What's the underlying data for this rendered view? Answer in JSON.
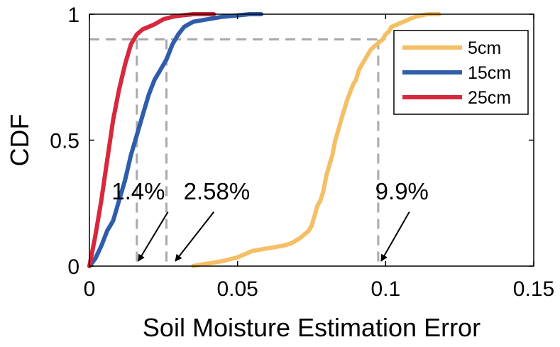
{
  "chart_data": {
    "type": "line",
    "title": "",
    "xlabel": "Soil Moisture Estimation Error",
    "ylabel": "CDF",
    "xlim": [
      0,
      0.15
    ],
    "ylim": [
      0,
      1
    ],
    "xticks": [
      0,
      0.05,
      0.1,
      0.15
    ],
    "xtick_labels": [
      "0",
      "0.05",
      "0.1",
      "0.15"
    ],
    "yticks": [
      0,
      0.5,
      1
    ],
    "ytick_labels": [
      "0",
      "0.5",
      "1"
    ],
    "grid": false,
    "legend_position": "top-right",
    "series": [
      {
        "name": "5cm",
        "color": "#f5bf65",
        "x": [
          0.035,
          0.037,
          0.04,
          0.045,
          0.05,
          0.055,
          0.06,
          0.065,
          0.068,
          0.071,
          0.074,
          0.075,
          0.076,
          0.077,
          0.078,
          0.079,
          0.08,
          0.081,
          0.082,
          0.083,
          0.084,
          0.085,
          0.086,
          0.087,
          0.088,
          0.089,
          0.09,
          0.091,
          0.092,
          0.093,
          0.094,
          0.095,
          0.096,
          0.097,
          0.098,
          0.099,
          0.1,
          0.101,
          0.102,
          0.104,
          0.106,
          0.11,
          0.114,
          0.118
        ],
        "y": [
          0.0,
          0.005,
          0.01,
          0.02,
          0.035,
          0.06,
          0.07,
          0.08,
          0.09,
          0.11,
          0.14,
          0.16,
          0.2,
          0.24,
          0.26,
          0.3,
          0.36,
          0.4,
          0.44,
          0.5,
          0.54,
          0.58,
          0.62,
          0.66,
          0.69,
          0.72,
          0.74,
          0.78,
          0.8,
          0.82,
          0.84,
          0.86,
          0.87,
          0.88,
          0.89,
          0.9,
          0.92,
          0.93,
          0.95,
          0.96,
          0.97,
          0.99,
          1.0,
          1.0
        ]
      },
      {
        "name": "15cm",
        "color": "#2f5dab",
        "x": [
          0,
          0.002,
          0.004,
          0.006,
          0.008,
          0.01,
          0.012,
          0.014,
          0.016,
          0.018,
          0.02,
          0.022,
          0.024,
          0.026,
          0.028,
          0.03,
          0.032,
          0.035,
          0.04,
          0.045,
          0.05,
          0.054,
          0.058
        ],
        "y": [
          0.0,
          0.03,
          0.08,
          0.14,
          0.18,
          0.26,
          0.34,
          0.44,
          0.52,
          0.6,
          0.68,
          0.74,
          0.78,
          0.82,
          0.88,
          0.92,
          0.95,
          0.97,
          0.98,
          0.99,
          0.995,
          1.0,
          1.0
        ]
      },
      {
        "name": "25cm",
        "color": "#d7283e",
        "x": [
          0,
          0.002,
          0.004,
          0.006,
          0.008,
          0.01,
          0.012,
          0.014,
          0.016,
          0.018,
          0.02,
          0.022,
          0.025,
          0.028,
          0.031,
          0.035,
          0.038,
          0.042
        ],
        "y": [
          0.0,
          0.12,
          0.26,
          0.42,
          0.58,
          0.7,
          0.8,
          0.88,
          0.92,
          0.94,
          0.95,
          0.96,
          0.98,
          0.99,
          0.995,
          1.0,
          1.0,
          1.0
        ]
      }
    ],
    "reference_lines": {
      "horizontal": {
        "y": 0.9,
        "x_from": 0.0,
        "x_to": 0.1
      },
      "vertical": [
        {
          "x": 0.016,
          "y_to": 0.9
        },
        {
          "x": 0.026,
          "y_to": 0.9
        },
        {
          "x": 0.0975,
          "y_to": 0.9
        }
      ],
      "color": "#aaaaaa"
    },
    "annotations": [
      {
        "text": "1.4%",
        "label_x": 0.0165,
        "label_y": 0.265,
        "arrow_from": [
          0.0265,
          0.215
        ],
        "arrow_to": [
          0.0165,
          0.02
        ]
      },
      {
        "text": "2.58%",
        "label_x": 0.043,
        "label_y": 0.265,
        "arrow_from": [
          0.042,
          0.215
        ],
        "arrow_to": [
          0.029,
          0.02
        ]
      },
      {
        "text": "9.9%",
        "label_x": 0.1055,
        "label_y": 0.265,
        "arrow_from": [
          0.108,
          0.215
        ],
        "arrow_to": [
          0.0985,
          0.02
        ]
      }
    ]
  }
}
